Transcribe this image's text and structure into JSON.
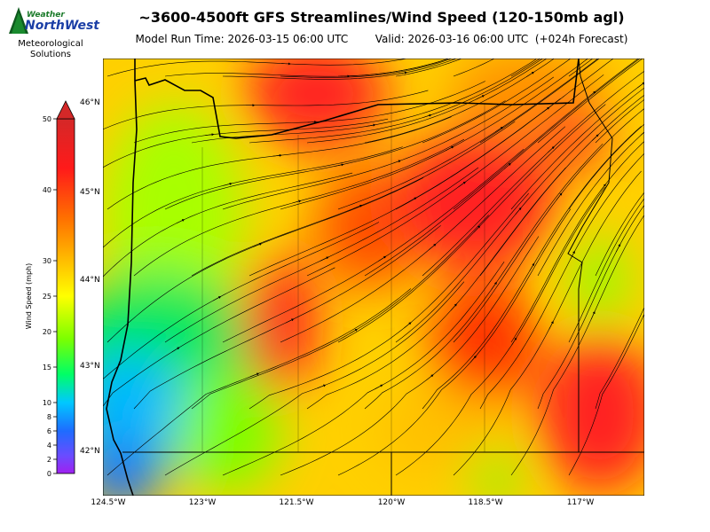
{
  "header": {
    "title": "~3600-4500ft GFS Streamlines/Wind Speed (120-150mb agl)",
    "model_run_label": "Model Run Time:",
    "model_run_time": "2026-03-15 06:00 UTC",
    "valid_label": "Valid:",
    "valid_time": "2026-03-16 06:00 UTC",
    "forecast_hour": "(+024h Forecast)"
  },
  "logo": {
    "brand_top": "Weather",
    "brand_main": "NorthWest",
    "org_line1": "Meteorological",
    "org_line2": "Solutions"
  },
  "colorbar": {
    "label": "Wind Speed (mph)",
    "ticks": [
      "0",
      "2",
      "4",
      "6",
      "8",
      "10",
      "15",
      "20",
      "25",
      "30",
      "40",
      "50"
    ],
    "colors": [
      "#a020f0",
      "#1e6cff",
      "#00c8ff",
      "#00ff66",
      "#7cff00",
      "#ffff00",
      "#ffb000",
      "#ff7000",
      "#ff1a1a",
      "#d42828"
    ]
  },
  "map": {
    "lat_labels": [
      "46°N",
      "45°N",
      "44°N",
      "43°N",
      "42°N"
    ],
    "lon_labels": [
      "124.5°W",
      "123°W",
      "121.5°W",
      "120°W",
      "118.5°W",
      "117°W"
    ],
    "region": "Oregon"
  }
}
